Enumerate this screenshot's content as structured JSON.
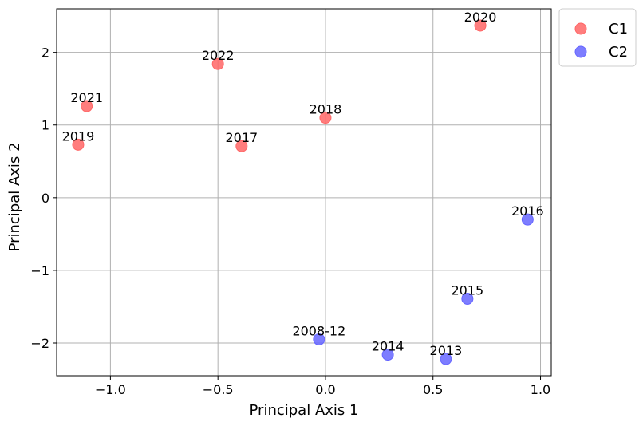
{
  "chart_data": {
    "type": "scatter",
    "title": "",
    "xlabel": "Principal Axis 1",
    "ylabel": "Principal Axis 2",
    "xlim": [
      -1.25,
      1.05
    ],
    "ylim": [
      -2.45,
      2.6
    ],
    "xticks": [
      -1.0,
      -0.5,
      0.0,
      0.5,
      1.0
    ],
    "xtick_labels": [
      "−1.0",
      "−0.5",
      "0.0",
      "0.5",
      "1.0"
    ],
    "yticks": [
      -2,
      -1,
      0,
      1,
      2
    ],
    "ytick_labels": [
      "−2",
      "−1",
      "0",
      "1",
      "2"
    ],
    "grid": true,
    "legend_position": "outside-top-right",
    "series": [
      {
        "name": "C1",
        "color": "#ff6666",
        "points": [
          {
            "label": "2020",
            "x": 0.72,
            "y": 2.37
          },
          {
            "label": "2022",
            "x": -0.5,
            "y": 1.84
          },
          {
            "label": "2021",
            "x": -1.11,
            "y": 1.26
          },
          {
            "label": "2018",
            "x": 0.0,
            "y": 1.1
          },
          {
            "label": "2019",
            "x": -1.15,
            "y": 0.73
          },
          {
            "label": "2017",
            "x": -0.39,
            "y": 0.71
          }
        ]
      },
      {
        "name": "C2",
        "color": "#6666ff",
        "points": [
          {
            "label": "2016",
            "x": 0.94,
            "y": -0.3
          },
          {
            "label": "2015",
            "x": 0.66,
            "y": -1.39
          },
          {
            "label": "2008-12",
            "x": -0.03,
            "y": -1.95
          },
          {
            "label": "2014",
            "x": 0.29,
            "y": -2.16
          },
          {
            "label": "2013",
            "x": 0.56,
            "y": -2.22
          }
        ]
      }
    ]
  }
}
